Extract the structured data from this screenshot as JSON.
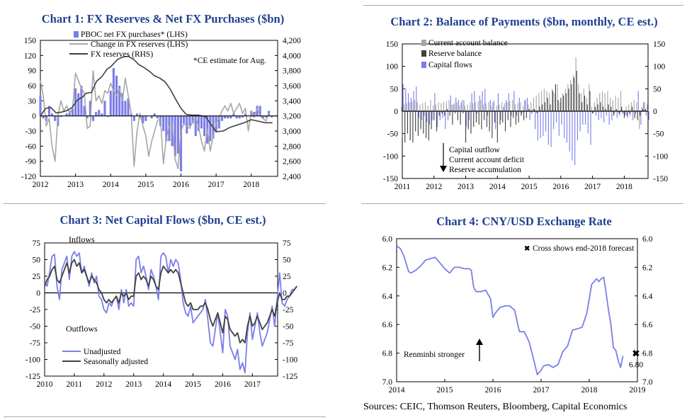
{
  "chart_data": [
    {
      "type": "bar",
      "title": "Chart 1: FX Reserves & Net FX Purchases ($bn)",
      "note": "*CE estimate for Aug.",
      "legend": [
        "PBOC net FX purchases* (LHS)",
        "Change in FX reserves (LHS)",
        "FX reserves (RHS)"
      ],
      "legend_position": "top-left",
      "colors": {
        "pboc": "#7b7ee8",
        "change": "#a6a6a6",
        "reserves": "#404040"
      },
      "x_ticks": [
        "2012",
        "2013",
        "2014",
        "2015",
        "2016",
        "2017",
        "2018"
      ],
      "ylim_left": [
        -120,
        150
      ],
      "yticks_left": [
        "150",
        "120",
        "90",
        "60",
        "30",
        "0",
        "-30",
        "-60",
        "-90",
        "-120"
      ],
      "ylim_right": [
        2400,
        4200
      ],
      "yticks_right": [
        "4,200",
        "4,000",
        "3,800",
        "3,600",
        "3,400",
        "3,200",
        "3,000",
        "2,800",
        "2,600",
        "2,400"
      ],
      "x_range": [
        2012.0,
        2018.75
      ],
      "pboc_start": 2012.0,
      "pboc_values": [
        40,
        -5,
        -10,
        20,
        5,
        -10,
        -20,
        -2,
        0,
        5,
        10,
        15,
        55,
        45,
        60,
        20,
        -5,
        30,
        -10,
        8,
        12,
        5,
        30,
        -2,
        50,
        95,
        80,
        60,
        45,
        30,
        35,
        5,
        -10,
        5,
        -5,
        -15,
        -10,
        0,
        -5,
        5,
        -5,
        -20,
        -30,
        -50,
        -50,
        -60,
        -80,
        -75,
        -110,
        -15,
        -35,
        -20,
        -15,
        -40,
        -30,
        -25,
        -40,
        -55,
        -50,
        -45,
        -30,
        -25,
        -10,
        -5,
        -5,
        -5,
        5,
        -5,
        -5,
        -3,
        5,
        0,
        10,
        8,
        20,
        20,
        -5,
        -3,
        10,
        -3
      ],
      "change_start": 2012.0,
      "change_values": [
        70,
        40,
        -20,
        -5,
        -60,
        -90,
        0,
        30,
        10,
        20,
        5,
        15,
        85,
        70,
        55,
        45,
        -25,
        -20,
        90,
        30,
        40,
        25,
        50,
        45,
        65,
        50,
        40,
        55,
        30,
        75,
        40,
        5,
        -100,
        -30,
        5,
        -20,
        -40,
        -80,
        -50,
        -30,
        -10,
        -5,
        -95,
        -45,
        -20,
        -15,
        -85,
        -105,
        -30,
        -15,
        -20,
        -25,
        -10,
        -5,
        -20,
        -50,
        -70,
        -25,
        -70,
        -40,
        -15,
        -5,
        10,
        20,
        10,
        25,
        5,
        15,
        25,
        5,
        15,
        -30,
        10,
        -3,
        15,
        0,
        -5,
        -10,
        5
      ],
      "reserves_x": [
        2012.0,
        2012.15,
        2012.3,
        2012.45,
        2012.6,
        2012.75,
        2012.9,
        2013.05,
        2013.2,
        2013.3,
        2013.45,
        2013.6,
        2013.75,
        2013.9,
        2014.0,
        2014.2,
        2014.35,
        2014.5,
        2014.65,
        2014.8,
        2014.95,
        2015.1,
        2015.25,
        2015.4,
        2015.55,
        2015.7,
        2015.85,
        2016.0,
        2016.15,
        2016.3,
        2016.5,
        2016.7,
        2016.85,
        2017.0,
        2017.2,
        2017.4,
        2017.6,
        2017.8,
        2018.0,
        2018.2,
        2018.4,
        2018.6
      ],
      "reserves": [
        3200,
        3300,
        3310,
        3240,
        3250,
        3270,
        3310,
        3410,
        3450,
        3500,
        3510,
        3660,
        3720,
        3820,
        3850,
        3950,
        3980,
        3990,
        3950,
        3880,
        3840,
        3790,
        3730,
        3700,
        3650,
        3550,
        3420,
        3300,
        3220,
        3210,
        3210,
        3190,
        3090,
        2990,
        3000,
        3050,
        3080,
        3110,
        3150,
        3130,
        3110,
        3110
      ]
    },
    {
      "type": "bar",
      "title": "Chart 2: Balance of Payments ($bn, monthly, CE est.)",
      "legend": [
        "Current account balance",
        "Reserve balance",
        "Capital flows"
      ],
      "legend_position": "top-left",
      "colors": {
        "current": "#a6a6a6",
        "reserve": "#404040",
        "capital": "#7b7ee8"
      },
      "x_ticks": [
        "2011",
        "2012",
        "2013",
        "2014",
        "2015",
        "2016",
        "2017",
        "2018"
      ],
      "ylim": [
        -150,
        150
      ],
      "yticks": [
        "150",
        "100",
        "50",
        "0",
        "-50",
        "-100",
        "-150"
      ],
      "x_range": [
        2011.0,
        2018.75
      ],
      "annotation": [
        "Capital outflow",
        "Current account deficit",
        "Reserve accumulation"
      ],
      "months_start": 2011.0,
      "current": [
        10,
        15,
        18,
        20,
        22,
        25,
        20,
        15,
        18,
        20,
        12,
        25,
        12,
        15,
        20,
        18,
        20,
        22,
        25,
        15,
        18,
        20,
        12,
        25,
        12,
        15,
        20,
        18,
        20,
        22,
        25,
        15,
        18,
        20,
        12,
        25,
        12,
        15,
        20,
        18,
        20,
        22,
        25,
        15,
        18,
        20,
        12,
        25,
        15,
        20,
        30,
        35,
        40,
        45,
        50,
        45,
        40,
        50,
        40,
        60,
        20,
        40,
        50,
        60,
        70,
        80,
        120,
        60,
        40,
        50,
        30,
        60,
        10,
        20,
        30,
        40,
        45,
        40,
        45,
        30,
        25,
        35,
        30,
        45,
        -5,
        10,
        15,
        20,
        25,
        20,
        -40,
        10,
        20,
        15
      ],
      "reserve": [
        -60,
        -70,
        -50,
        -65,
        -70,
        -45,
        -55,
        -40,
        -50,
        -60,
        -65,
        -40,
        -20,
        -45,
        -10,
        -5,
        -10,
        5,
        -10,
        -30,
        -5,
        -20,
        -30,
        -5,
        -70,
        -40,
        -50,
        -35,
        -25,
        -30,
        -40,
        -20,
        -35,
        -45,
        -60,
        -25,
        -70,
        -30,
        -25,
        -45,
        -20,
        -35,
        -15,
        -30,
        -25,
        -10,
        -20,
        -15,
        5,
        -5,
        5,
        -5,
        10,
        15,
        20,
        30,
        15,
        45,
        60,
        25,
        30,
        35,
        40,
        50,
        60,
        75,
        90,
        40,
        20,
        35,
        15,
        45,
        -5,
        10,
        15,
        20,
        10,
        5,
        15,
        10,
        -10,
        5,
        -5,
        10,
        -15,
        -10,
        -5,
        10,
        -15,
        -20,
        -10,
        5,
        5,
        5
      ],
      "capital": [
        60,
        50,
        40,
        30,
        45,
        55,
        -15,
        -20,
        -10,
        -25,
        -30,
        -20,
        40,
        -35,
        -20,
        -15,
        -40,
        -20,
        35,
        15,
        30,
        25,
        20,
        25,
        -35,
        -20,
        40,
        45,
        -5,
        35,
        45,
        50,
        -10,
        25,
        20,
        -40,
        40,
        -20,
        10,
        25,
        40,
        -10,
        45,
        -10,
        30,
        -5,
        25,
        30,
        -20,
        5,
        -40,
        -65,
        -60,
        -55,
        -45,
        -75,
        -80,
        -40,
        -25,
        -55,
        -30,
        -60,
        -70,
        -90,
        -110,
        -120,
        -65,
        -45,
        -30,
        -30,
        -50,
        -75,
        -5,
        -10,
        -20,
        -15,
        -25,
        -10,
        -30,
        -20,
        -5,
        -15,
        -10,
        -5,
        -10,
        -15,
        -10,
        -20,
        -5,
        45,
        -30,
        20,
        -10,
        -20
      ]
    },
    {
      "type": "line",
      "title": "Chart 3: Net Capital Flows ($bn, CE est.)",
      "legend": [
        "Unadjusted",
        "Seasonally adjusted"
      ],
      "legend_position": "bottom-left",
      "colors": {
        "unadjusted": "#7b7ee8",
        "sa": "#404040"
      },
      "labels": [
        "Inflows",
        "Outflows"
      ],
      "x_ticks": [
        "2010",
        "2011",
        "2012",
        "2013",
        "2014",
        "2015",
        "2016",
        "2017"
      ],
      "ylim": [
        -125,
        75
      ],
      "yticks": [
        "75",
        "50",
        "25",
        "0",
        "-25",
        "-50",
        "-75",
        "-100",
        "-125"
      ],
      "x_range": [
        2010.0,
        2017.85
      ],
      "months_start": 2010.0,
      "unadjusted": [
        15,
        10,
        30,
        55,
        58,
        10,
        -10,
        35,
        45,
        55,
        20,
        55,
        62,
        55,
        60,
        30,
        40,
        25,
        10,
        30,
        15,
        25,
        -5,
        -10,
        -25,
        -30,
        -15,
        -20,
        -10,
        -5,
        -25,
        5,
        -15,
        5,
        -20,
        -15,
        -20,
        50,
        55,
        30,
        40,
        25,
        5,
        35,
        25,
        10,
        -10,
        55,
        60,
        55,
        30,
        50,
        40,
        50,
        45,
        20,
        -15,
        -30,
        -35,
        -20,
        -45,
        -40,
        -35,
        -30,
        -25,
        -10,
        -40,
        -75,
        -80,
        -55,
        -30,
        -60,
        -90,
        -25,
        -35,
        -80,
        -90,
        -100,
        -85,
        -115,
        -105,
        -120,
        -60,
        -30,
        -70,
        -50,
        -30,
        -60,
        -80,
        -70,
        -60,
        -40,
        -20,
        -50,
        -10,
        30,
        -15,
        -20,
        -10,
        -5,
        5,
        5,
        10
      ],
      "sa": [
        10,
        20,
        25,
        35,
        40,
        20,
        15,
        25,
        35,
        45,
        30,
        45,
        50,
        40,
        45,
        30,
        35,
        25,
        15,
        25,
        20,
        15,
        5,
        0,
        -10,
        -15,
        -10,
        -15,
        -10,
        -5,
        -15,
        0,
        -5,
        0,
        -10,
        -5,
        -5,
        25,
        30,
        20,
        25,
        20,
        10,
        25,
        20,
        10,
        5,
        30,
        40,
        35,
        30,
        35,
        30,
        35,
        30,
        15,
        0,
        -15,
        -20,
        -15,
        -25,
        -25,
        -25,
        -20,
        -20,
        -15,
        -25,
        -40,
        -50,
        -40,
        -30,
        -45,
        -60,
        -35,
        -40,
        -55,
        -60,
        -65,
        -60,
        -75,
        -70,
        -75,
        -50,
        -35,
        -50,
        -45,
        -35,
        -45,
        -55,
        -50,
        -45,
        -35,
        -25,
        -35,
        -15,
        0,
        -10,
        -10,
        -5,
        -5,
        0,
        5,
        10
      ]
    },
    {
      "type": "line",
      "title": "Chart 4: CNY/USD Exchange Rate",
      "legend": [
        "Cross shows end-2018 forecast"
      ],
      "legend_position": "top-right",
      "colors": {
        "line": "#7b7ee8",
        "marker": "#404040"
      },
      "x_ticks": [
        "2014",
        "2015",
        "2016",
        "2017",
        "2018",
        "2019"
      ],
      "ylim": [
        7.0,
        6.0
      ],
      "yticks": [
        "6.0",
        "6.2",
        "6.4",
        "6.6",
        "6.8",
        "7.0"
      ],
      "x_range": [
        2014.0,
        2019.0
      ],
      "annotation": "Renminbi stronger",
      "forecast": {
        "x": 2019.0,
        "y": 6.8,
        "label": "6.80"
      },
      "x": [
        2014.0,
        2014.08,
        2014.15,
        2014.25,
        2014.3,
        2014.4,
        2014.5,
        2014.6,
        2014.7,
        2014.8,
        2014.9,
        2015.0,
        2015.1,
        2015.2,
        2015.3,
        2015.4,
        2015.5,
        2015.55,
        2015.6,
        2015.65,
        2015.75,
        2015.85,
        2015.95,
        2016.0,
        2016.05,
        2016.15,
        2016.25,
        2016.35,
        2016.45,
        2016.55,
        2016.65,
        2016.75,
        2016.85,
        2016.92,
        2017.0,
        2017.05,
        2017.15,
        2017.25,
        2017.35,
        2017.45,
        2017.55,
        2017.65,
        2017.75,
        2017.85,
        2017.95,
        2018.05,
        2018.15,
        2018.2,
        2018.25,
        2018.3,
        2018.35,
        2018.4,
        2018.45,
        2018.5,
        2018.55,
        2018.6,
        2018.65,
        2018.7
      ],
      "y": [
        6.05,
        6.07,
        6.12,
        6.23,
        6.24,
        6.22,
        6.19,
        6.15,
        6.14,
        6.13,
        6.17,
        6.21,
        6.24,
        6.2,
        6.2,
        6.21,
        6.21,
        6.22,
        6.34,
        6.37,
        6.37,
        6.36,
        6.42,
        6.55,
        6.52,
        6.48,
        6.47,
        6.47,
        6.5,
        6.65,
        6.65,
        6.72,
        6.85,
        6.95,
        6.92,
        6.89,
        6.88,
        6.9,
        6.88,
        6.79,
        6.75,
        6.64,
        6.63,
        6.62,
        6.52,
        6.32,
        6.28,
        6.3,
        6.28,
        6.27,
        6.38,
        6.5,
        6.6,
        6.76,
        6.78,
        6.85,
        6.9,
        6.82
      ]
    }
  ],
  "source": "Sources: CEIC, Thomson Reuters, Bloomberg, Capital Economics"
}
